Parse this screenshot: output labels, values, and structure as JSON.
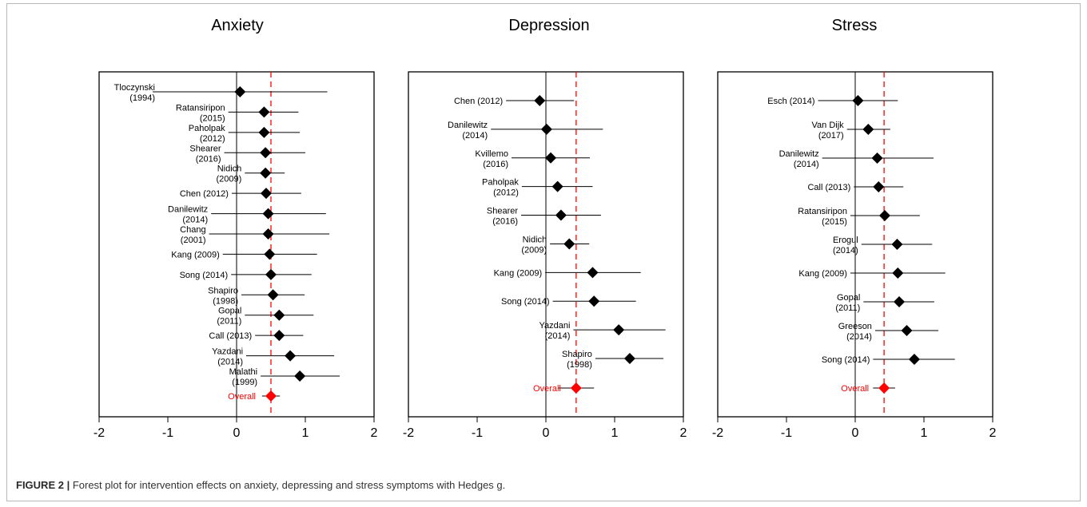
{
  "caption": {
    "label": "FIGURE 2 |",
    "text": " Forest plot for intervention effects on anxiety, depressing and stress symptoms with Hedges g."
  },
  "colors": {
    "study": "#000000",
    "overall": "#ff0000",
    "reference_line": "#ff0000"
  },
  "chart_data": [
    {
      "type": "forest",
      "title": "Anxiety",
      "xlim": [
        -2,
        2
      ],
      "xticks": [
        -2,
        -1,
        0,
        1,
        2
      ],
      "reference_x": 0.5,
      "studies": [
        {
          "label": [
            "Tloczynski",
            "(1994)"
          ],
          "estimate": 0.05,
          "ci": [
            -1.22,
            1.32
          ]
        },
        {
          "label": [
            "Ratansiripon",
            "(2015)"
          ],
          "estimate": 0.4,
          "ci": [
            -0.12,
            0.9
          ]
        },
        {
          "label": [
            "Paholpak",
            "(2012)"
          ],
          "estimate": 0.4,
          "ci": [
            -0.12,
            0.92
          ]
        },
        {
          "label": [
            "Shearer",
            "(2016)"
          ],
          "estimate": 0.42,
          "ci": [
            -0.18,
            1.0
          ]
        },
        {
          "label": [
            "Nidich",
            "(2009)"
          ],
          "estimate": 0.42,
          "ci": [
            0.12,
            0.7
          ]
        },
        {
          "label": [
            "Chen (2012)"
          ],
          "estimate": 0.43,
          "ci": [
            -0.07,
            0.94
          ]
        },
        {
          "label": [
            "Danilewitz",
            "(2014)"
          ],
          "estimate": 0.46,
          "ci": [
            -0.37,
            1.3
          ]
        },
        {
          "label": [
            "Chang",
            "(2001)"
          ],
          "estimate": 0.46,
          "ci": [
            -0.4,
            1.35
          ]
        },
        {
          "label": [
            "Kang (2009)"
          ],
          "estimate": 0.48,
          "ci": [
            -0.2,
            1.17
          ]
        },
        {
          "label": [
            "Song (2014)"
          ],
          "estimate": 0.5,
          "ci": [
            -0.08,
            1.09
          ]
        },
        {
          "label": [
            "Shapiro",
            "(1998)"
          ],
          "estimate": 0.53,
          "ci": [
            0.07,
            0.99
          ]
        },
        {
          "label": [
            "Gopal",
            "(2011)"
          ],
          "estimate": 0.62,
          "ci": [
            0.12,
            1.12
          ]
        },
        {
          "label": [
            "Call (2013)"
          ],
          "estimate": 0.62,
          "ci": [
            0.27,
            0.97
          ]
        },
        {
          "label": [
            "Yazdani",
            "(2014)"
          ],
          "estimate": 0.78,
          "ci": [
            0.14,
            1.42
          ]
        },
        {
          "label": [
            "Malathi",
            "(1999)"
          ],
          "estimate": 0.92,
          "ci": [
            0.35,
            1.5
          ]
        }
      ],
      "overall": {
        "label": "Overall",
        "estimate": 0.5,
        "ci": [
          0.37,
          0.63
        ]
      }
    },
    {
      "type": "forest",
      "title": "Depression",
      "xlim": [
        -2,
        2
      ],
      "xticks": [
        -2,
        -1,
        0,
        1,
        2
      ],
      "reference_x": 0.44,
      "studies": [
        {
          "label": [
            "Chen (2012)"
          ],
          "estimate": -0.09,
          "ci": [
            -0.58,
            0.41
          ]
        },
        {
          "label": [
            "Danilewitz",
            "(2014)"
          ],
          "estimate": 0.01,
          "ci": [
            -0.8,
            0.83
          ]
        },
        {
          "label": [
            "Kvillemo",
            "(2016)"
          ],
          "estimate": 0.07,
          "ci": [
            -0.5,
            0.64
          ]
        },
        {
          "label": [
            "Paholpak",
            "(2012)"
          ],
          "estimate": 0.17,
          "ci": [
            -0.35,
            0.68
          ]
        },
        {
          "label": [
            "Shearer",
            "(2016)"
          ],
          "estimate": 0.22,
          "ci": [
            -0.36,
            0.8
          ]
        },
        {
          "label": [
            "Nidich",
            "(2009)"
          ],
          "estimate": 0.34,
          "ci": [
            0.06,
            0.63
          ]
        },
        {
          "label": [
            "Kang (2009)"
          ],
          "estimate": 0.68,
          "ci": [
            -0.01,
            1.38
          ]
        },
        {
          "label": [
            "Song (2014)"
          ],
          "estimate": 0.7,
          "ci": [
            0.1,
            1.31
          ]
        },
        {
          "label": [
            "Yazdani",
            "(2014)"
          ],
          "estimate": 1.06,
          "ci": [
            0.4,
            1.74
          ]
        },
        {
          "label": [
            "Shapiro",
            "(1998)"
          ],
          "estimate": 1.22,
          "ci": [
            0.72,
            1.71
          ]
        }
      ],
      "overall": {
        "label": "Overall",
        "estimate": 0.44,
        "ci": [
          0.18,
          0.7
        ]
      }
    },
    {
      "type": "forest",
      "title": "Stress",
      "xlim": [
        -2,
        2
      ],
      "xticks": [
        -2,
        -1,
        0,
        1,
        2
      ],
      "reference_x": 0.42,
      "studies": [
        {
          "label": [
            "Esch (2014)"
          ],
          "estimate": 0.04,
          "ci": [
            -0.54,
            0.62
          ]
        },
        {
          "label": [
            "Van Dijk",
            "(2017)"
          ],
          "estimate": 0.19,
          "ci": [
            -0.12,
            0.51
          ]
        },
        {
          "label": [
            "Danilewitz",
            "(2014)"
          ],
          "estimate": 0.32,
          "ci": [
            -0.48,
            1.14
          ]
        },
        {
          "label": [
            "Call (2013)"
          ],
          "estimate": 0.34,
          "ci": [
            -0.02,
            0.7
          ]
        },
        {
          "label": [
            "Ratansiripon",
            "(2015)"
          ],
          "estimate": 0.43,
          "ci": [
            -0.07,
            0.94
          ]
        },
        {
          "label": [
            "Erogul",
            "(2014)"
          ],
          "estimate": 0.61,
          "ci": [
            0.09,
            1.12
          ]
        },
        {
          "label": [
            "Kang (2009)"
          ],
          "estimate": 0.62,
          "ci": [
            -0.07,
            1.31
          ]
        },
        {
          "label": [
            "Gopal",
            "(2011)"
          ],
          "estimate": 0.64,
          "ci": [
            0.12,
            1.15
          ]
        },
        {
          "label": [
            "Greeson",
            "(2014)"
          ],
          "estimate": 0.75,
          "ci": [
            0.29,
            1.21
          ]
        },
        {
          "label": [
            "Song (2014)"
          ],
          "estimate": 0.86,
          "ci": [
            0.26,
            1.45
          ]
        }
      ],
      "overall": {
        "label": "Overall",
        "estimate": 0.42,
        "ci": [
          0.26,
          0.58
        ]
      }
    }
  ]
}
